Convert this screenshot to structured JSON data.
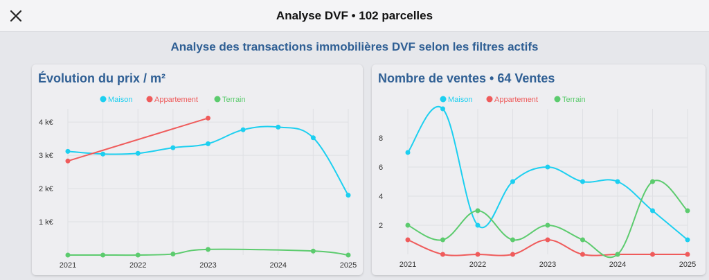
{
  "header": {
    "title": "Analyse DVF • 102 parcelles",
    "close_icon": "close-icon"
  },
  "subtitle": "Analyse des transactions immobilières DVF selon les filtres actifs",
  "colors": {
    "Maison": "#1ccff0",
    "Appartement": "#ef5b5b",
    "Terrain": "#5ccb6e",
    "title": "#2f5f94"
  },
  "chart_data": [
    {
      "type": "line",
      "title": "Évolution du prix / m²",
      "legend_position": "top-center",
      "grid": true,
      "x_ticks": [
        "2021",
        "2022",
        "2023",
        "2024",
        "2025"
      ],
      "xlim": [
        2021,
        2025
      ],
      "y_ticks": [
        {
          "v": 1,
          "label": "1 k€"
        },
        {
          "v": 2,
          "label": "2 k€"
        },
        {
          "v": 3,
          "label": "3 k€"
        },
        {
          "v": 4,
          "label": "4 k€"
        }
      ],
      "ylim": [
        0,
        4.4
      ],
      "y_unit": "k€",
      "series": [
        {
          "name": "Maison",
          "x": [
            2021,
            2021.5,
            2022,
            2022.5,
            2023,
            2023.5,
            2024,
            2024.5,
            2025
          ],
          "y": [
            3.12,
            3.04,
            3.06,
            3.23,
            3.35,
            3.77,
            3.85,
            3.53,
            1.8
          ]
        },
        {
          "name": "Appartement",
          "x": [
            2021,
            2023
          ],
          "y": [
            2.83,
            4.12
          ]
        },
        {
          "name": "Terrain",
          "x": [
            2021,
            2021.5,
            2022,
            2022.5,
            2023,
            2024.5,
            2025
          ],
          "y": [
            0,
            0,
            0,
            0.03,
            0.17,
            0.12,
            0
          ]
        }
      ]
    },
    {
      "type": "line",
      "title": "Nombre de ventes • 64 Ventes",
      "legend_position": "top-center",
      "grid": true,
      "x_ticks": [
        "2021",
        "2022",
        "2023",
        "2024",
        "2025"
      ],
      "xlim": [
        2021,
        2025
      ],
      "y_ticks": [
        {
          "v": 2,
          "label": "2"
        },
        {
          "v": 4,
          "label": "4"
        },
        {
          "v": 6,
          "label": "6"
        },
        {
          "v": 8,
          "label": "8"
        }
      ],
      "ylim": [
        0,
        10
      ],
      "series": [
        {
          "name": "Maison",
          "x": [
            2021,
            2021.5,
            2022,
            2022.5,
            2023,
            2023.5,
            2024,
            2024.5,
            2025
          ],
          "y": [
            7,
            10,
            2,
            5,
            6,
            5,
            5,
            3,
            1
          ]
        },
        {
          "name": "Appartement",
          "x": [
            2021,
            2021.5,
            2022,
            2022.5,
            2023,
            2023.5,
            2024,
            2024.5,
            2025
          ],
          "y": [
            1,
            0,
            0,
            0,
            1,
            0,
            0,
            0,
            0
          ]
        },
        {
          "name": "Terrain",
          "x": [
            2021,
            2021.5,
            2022,
            2022.5,
            2023,
            2023.5,
            2024,
            2024.5,
            2025
          ],
          "y": [
            2,
            1,
            3,
            1,
            2,
            1,
            0,
            5,
            3
          ]
        }
      ]
    }
  ]
}
